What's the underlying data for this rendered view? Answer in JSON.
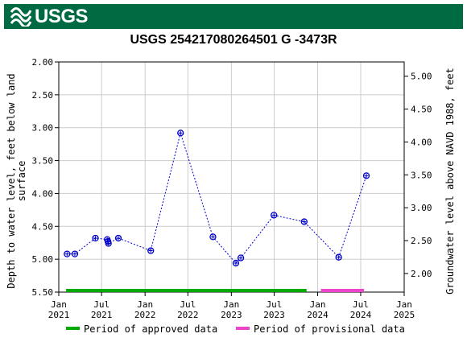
{
  "header": {
    "logo_text": "USGS"
  },
  "chart_data": {
    "type": "scatter",
    "title": "USGS 254217080264501 G -3473R",
    "ylabel_left": "Depth to water level, feet below land surface",
    "ylabel_left_lines": [
      "Depth to water level, feet below land",
      "surface"
    ],
    "ylabel_right": "Groundwater level above NAVD 1988, feet",
    "ylim_left": [
      5.5,
      2.0
    ],
    "ylim_right": [
      1.717,
      5.217
    ],
    "datum_offset": 7.217,
    "y_ticks_left": [
      "2.00",
      "2.50",
      "3.00",
      "3.50",
      "4.00",
      "4.50",
      "5.00",
      "5.50"
    ],
    "y_ticks_right": [
      "2.00",
      "2.50",
      "3.00",
      "3.50",
      "4.00",
      "4.50",
      "5.00"
    ],
    "x_ticks": [
      {
        "date": "2021-01-01",
        "month": "Jan",
        "year": "2021"
      },
      {
        "date": "2021-07-01",
        "month": "Jul",
        "year": "2021"
      },
      {
        "date": "2022-01-01",
        "month": "Jan",
        "year": "2022"
      },
      {
        "date": "2022-07-01",
        "month": "Jul",
        "year": "2022"
      },
      {
        "date": "2023-01-01",
        "month": "Jan",
        "year": "2023"
      },
      {
        "date": "2023-07-01",
        "month": "Jul",
        "year": "2023"
      },
      {
        "date": "2024-01-01",
        "month": "Jan",
        "year": "2024"
      },
      {
        "date": "2024-07-01",
        "month": "Jul",
        "year": "2024"
      },
      {
        "date": "2025-01-01",
        "month": "Jan",
        "year": "2025"
      }
    ],
    "xlim": [
      "2021-01-01",
      "2025-01-01"
    ],
    "series": [
      {
        "points": [
          {
            "date": "2021-02-05",
            "value": 4.92
          },
          {
            "date": "2021-03-10",
            "value": 4.92
          },
          {
            "date": "2021-06-05",
            "value": 4.68
          },
          {
            "date": "2021-07-25",
            "value": 4.7
          },
          {
            "date": "2021-07-28",
            "value": 4.73
          },
          {
            "date": "2021-07-30",
            "value": 4.76
          },
          {
            "date": "2021-09-10",
            "value": 4.68
          },
          {
            "date": "2022-01-25",
            "value": 4.87
          },
          {
            "date": "2022-05-31",
            "value": 3.08
          },
          {
            "date": "2022-10-15",
            "value": 4.66
          },
          {
            "date": "2023-01-20",
            "value": 5.06
          },
          {
            "date": "2023-02-10",
            "value": 4.98
          },
          {
            "date": "2023-06-30",
            "value": 4.33
          },
          {
            "date": "2023-11-05",
            "value": 4.43
          },
          {
            "date": "2024-03-30",
            "value": 4.97
          },
          {
            "date": "2024-07-25",
            "value": 3.73
          }
        ],
        "color": "#0000cc"
      }
    ],
    "approval_periods": [
      {
        "label": "Period of approved data",
        "start": "2021-02-01",
        "end": "2023-11-15",
        "color": "#00aa00"
      },
      {
        "label": "Period of provisional data",
        "start": "2024-01-15",
        "end": "2024-07-15",
        "color": "#ee44cc"
      }
    ],
    "grid": true
  }
}
